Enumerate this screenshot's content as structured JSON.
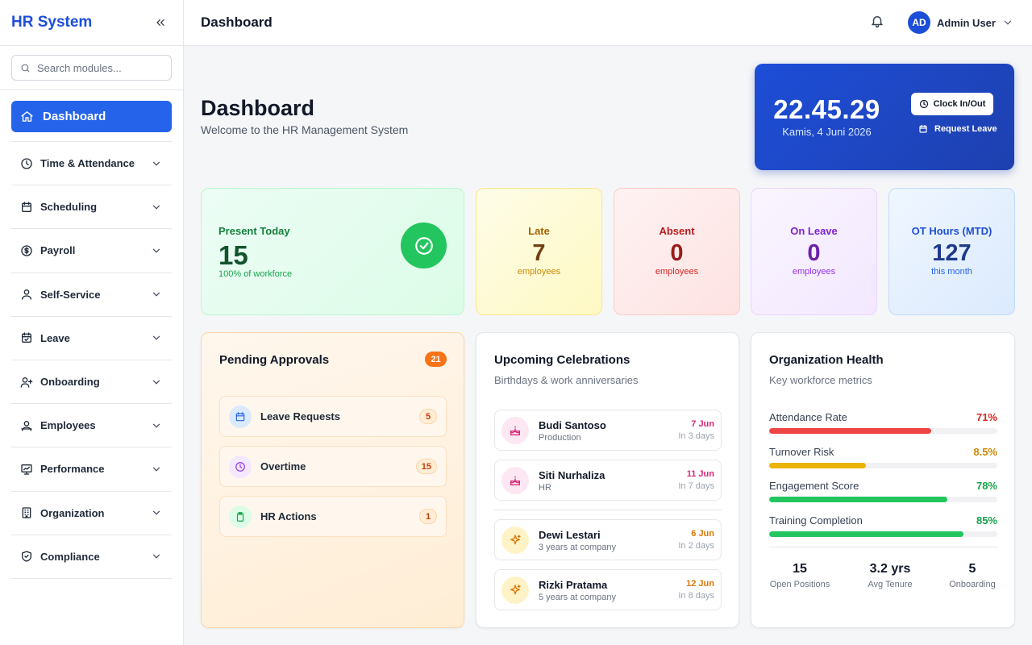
{
  "sidebar": {
    "brand": "HR System",
    "search_placeholder": "Search modules...",
    "active": "Dashboard",
    "items": [
      {
        "label": "Time & Attendance",
        "icon": "clock-icon"
      },
      {
        "label": "Scheduling",
        "icon": "calendar-icon"
      },
      {
        "label": "Payroll",
        "icon": "dollar-icon"
      },
      {
        "label": "Self-Service",
        "icon": "user-icon"
      },
      {
        "label": "Leave",
        "icon": "calendar-check-icon"
      },
      {
        "label": "Onboarding",
        "icon": "user-plus-icon"
      },
      {
        "label": "Employees",
        "icon": "users-icon"
      },
      {
        "label": "Performance",
        "icon": "chart-icon"
      },
      {
        "label": "Organization",
        "icon": "building-icon"
      },
      {
        "label": "Compliance",
        "icon": "shield-icon"
      }
    ]
  },
  "header": {
    "title": "Dashboard",
    "avatar_initials": "AD",
    "user_name": "Admin User"
  },
  "hero": {
    "title": "Dashboard",
    "subtitle": "Welcome to the HR Management System"
  },
  "clock": {
    "time": "22.45.29",
    "date": "Kamis, 4 Juni 2026",
    "clock_button": "Clock In/Out",
    "leave_link": "Request Leave"
  },
  "stats": {
    "present": {
      "label": "Present Today",
      "value": "15",
      "sub": "100% of workforce"
    },
    "late": {
      "label": "Late",
      "value": "7",
      "sub": "employees"
    },
    "absent": {
      "label": "Absent",
      "value": "0",
      "sub": "employees"
    },
    "on_leave": {
      "label": "On Leave",
      "value": "0",
      "sub": "employees"
    },
    "ot": {
      "label": "OT Hours (MTD)",
      "value": "127",
      "sub": "this month"
    }
  },
  "approvals": {
    "title": "Pending Approvals",
    "total": "21",
    "items": [
      {
        "label": "Leave Requests",
        "count": "5"
      },
      {
        "label": "Overtime",
        "count": "15"
      },
      {
        "label": "HR Actions",
        "count": "1"
      }
    ]
  },
  "celebrations": {
    "title": "Upcoming Celebrations",
    "subtitle": "Birthdays & work anniversaries",
    "birthdays": [
      {
        "name": "Budi Santoso",
        "sub": "Production",
        "date": "7 Jun",
        "days": "In 3 days"
      },
      {
        "name": "Siti Nurhaliza",
        "sub": "HR",
        "date": "11 Jun",
        "days": "In 7 days"
      }
    ],
    "anniversaries": [
      {
        "name": "Dewi Lestari",
        "sub": "3 years at company",
        "date": "6 Jun",
        "days": "In 2 days"
      },
      {
        "name": "Rizki Pratama",
        "sub": "5 years at company",
        "date": "12 Jun",
        "days": "In 8 days"
      }
    ]
  },
  "health": {
    "title": "Organization Health",
    "subtitle": "Key workforce metrics",
    "metrics": [
      {
        "label": "Attendance Rate",
        "value": "71%",
        "fraction": 0.71,
        "color": "#ef4444"
      },
      {
        "label": "Turnover Risk",
        "value": "8.5%",
        "fraction": 0.425,
        "color": "#eab308"
      },
      {
        "label": "Engagement Score",
        "value": "78%",
        "fraction": 0.78,
        "color": "#22c55e"
      },
      {
        "label": "Training Completion",
        "value": "85%",
        "fraction": 0.85,
        "color": "#22c55e"
      }
    ],
    "kpis": [
      {
        "value": "15",
        "label": "Open Positions"
      },
      {
        "value": "3.2 yrs",
        "label": "Avg Tenure"
      },
      {
        "value": "5",
        "label": "Onboarding"
      }
    ]
  }
}
